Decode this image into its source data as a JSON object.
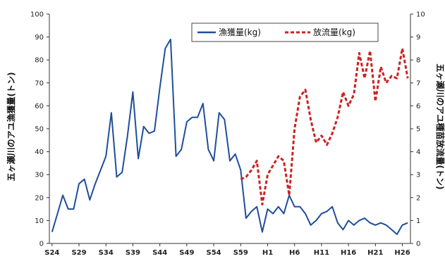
{
  "chart_data": {
    "type": "line",
    "x": [
      "S24",
      "S25",
      "S26",
      "S27",
      "S28",
      "S29",
      "S30",
      "S31",
      "S32",
      "S33",
      "S34",
      "S35",
      "S36",
      "S37",
      "S38",
      "S39",
      "S40",
      "S41",
      "S42",
      "S43",
      "S44",
      "S45",
      "S46",
      "S47",
      "S48",
      "S49",
      "S50",
      "S51",
      "S52",
      "S53",
      "S54",
      "S55",
      "S56",
      "S57",
      "S58",
      "S59",
      "S60",
      "S61",
      "S62",
      "S63",
      "H1",
      "H2",
      "H3",
      "H4",
      "H5",
      "H6",
      "H7",
      "H8",
      "H9",
      "H10",
      "H11",
      "H12",
      "H13",
      "H14",
      "H15",
      "H16",
      "H17",
      "H18",
      "H19",
      "H20",
      "H21",
      "H22",
      "H23",
      "H24",
      "H25",
      "H26",
      "H27"
    ],
    "xticks": [
      "S24",
      "S29",
      "S34",
      "S39",
      "S44",
      "S49",
      "S54",
      "S59",
      "H1",
      "H6",
      "H11",
      "H16",
      "H21",
      "H26"
    ],
    "yticks_left": [
      "0",
      "10",
      "20",
      "30",
      "40",
      "50",
      "60",
      "70",
      "80",
      "90",
      "100"
    ],
    "yticks_right": [
      "0",
      "1",
      "2",
      "3",
      "4",
      "5",
      "6",
      "7",
      "8",
      "9",
      "10"
    ],
    "ylim_left": [
      0,
      100
    ],
    "ylim_right": [
      0,
      10
    ],
    "ylabel_left": "五ヶ瀬川のアユ漁獲量(トン)",
    "ylabel_right": "五ヶ瀬川のアユ種苗放流量(トン)",
    "legend_position": "top-right",
    "grid": false,
    "series": [
      {
        "name": "漁獲量(kg)",
        "axis": "left",
        "color": "#1f4e9b",
        "style": "solid",
        "values": [
          5,
          13,
          21,
          15,
          15,
          26,
          28,
          19,
          26,
          32,
          38,
          57,
          29,
          31,
          47,
          66,
          37,
          51,
          48,
          49,
          68,
          85,
          89,
          38,
          41,
          53,
          55,
          55,
          61,
          41,
          36,
          57,
          54,
          36,
          39,
          32,
          11,
          14,
          16,
          5,
          15,
          13,
          16,
          13,
          21,
          16,
          16,
          13,
          8,
          10,
          13,
          14,
          16,
          9,
          6,
          10,
          8,
          10,
          11,
          9,
          8,
          9,
          8,
          6,
          4,
          8,
          9
        ]
      },
      {
        "name": "放流量(kg)",
        "axis": "right",
        "color": "#cc2222",
        "style": "dashed",
        "values": [
          null,
          null,
          null,
          null,
          null,
          null,
          null,
          null,
          null,
          null,
          null,
          null,
          null,
          null,
          null,
          null,
          null,
          null,
          null,
          null,
          null,
          null,
          null,
          null,
          null,
          null,
          null,
          null,
          null,
          null,
          null,
          null,
          null,
          null,
          null,
          2.8,
          2.9,
          3.2,
          3.6,
          1.7,
          3.0,
          3.4,
          3.8,
          3.6,
          2.1,
          5.0,
          6.4,
          6.7,
          5.4,
          4.4,
          4.7,
          4.3,
          4.8,
          5.5,
          6.6,
          6.0,
          6.5,
          8.3,
          7.2,
          8.4,
          6.2,
          7.7,
          7.0,
          7.3,
          7.2,
          8.5,
          7.2
        ]
      }
    ]
  }
}
